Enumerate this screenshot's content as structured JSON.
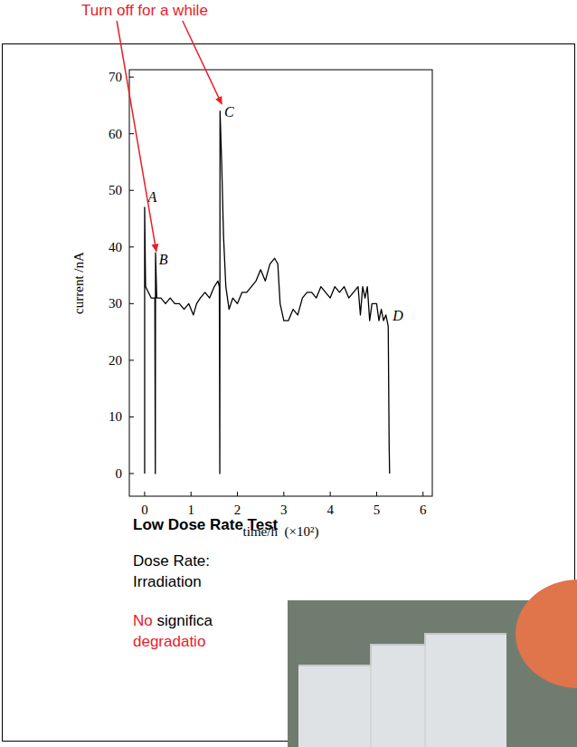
{
  "chart_data": {
    "type": "line",
    "x_label": "time/h  (×10²)",
    "y_label": "current /nA",
    "xlim": [
      -0.33,
      6.2
    ],
    "ylim": [
      -4,
      71.3
    ],
    "xticks": [
      0,
      1,
      2,
      3,
      4,
      5,
      6
    ],
    "yticks": [
      0,
      10,
      20,
      30,
      40,
      50,
      60,
      70
    ],
    "grid": false,
    "color": "#000000",
    "x": [
      0,
      0,
      0.02,
      0.08,
      0.14,
      0.2,
      0.22,
      0.23,
      0.235,
      0.26,
      0.35,
      0.45,
      0.55,
      0.65,
      0.75,
      0.85,
      0.95,
      1.05,
      1.12,
      1.2,
      1.3,
      1.4,
      1.5,
      1.58,
      1.61,
      1.62,
      1.625,
      1.66,
      1.7,
      1.75,
      1.82,
      1.9,
      2.0,
      2.1,
      2.2,
      2.3,
      2.4,
      2.5,
      2.6,
      2.7,
      2.8,
      2.87,
      2.92,
      3.0,
      3.1,
      3.2,
      3.3,
      3.4,
      3.5,
      3.6,
      3.7,
      3.8,
      3.9,
      4.0,
      4.1,
      4.2,
      4.3,
      4.4,
      4.5,
      4.6,
      4.65,
      4.7,
      4.75,
      4.8,
      4.85,
      4.9,
      5.0,
      5.05,
      5.1,
      5.15,
      5.2,
      5.25,
      5.27,
      5.28
    ],
    "values": [
      0,
      47,
      33,
      32,
      31,
      31,
      31,
      0,
      39,
      31,
      31,
      30,
      31,
      30,
      30,
      29,
      30,
      28,
      30,
      31,
      32,
      31,
      33,
      34,
      33,
      0,
      64,
      55,
      42,
      33,
      29,
      31,
      30,
      32,
      32,
      33,
      34,
      36,
      34,
      37,
      38,
      37,
      30,
      27,
      27,
      29,
      28,
      31,
      32,
      32,
      31,
      33,
      32,
      31,
      33,
      32,
      33,
      31,
      32,
      33,
      28,
      33,
      31,
      33,
      27,
      30,
      30,
      27,
      29,
      27,
      28,
      26,
      5,
      0
    ],
    "annotations": [
      {
        "text": "A",
        "x": 0.03,
        "y": 48
      },
      {
        "text": "B",
        "x": 0.27,
        "y": 37
      },
      {
        "text": "C",
        "x": 1.68,
        "y": 63
      },
      {
        "text": "D",
        "x": 5.31,
        "y": 27
      }
    ]
  },
  "slide": {
    "callout": {
      "text": "Turn off for a while",
      "color": "#e8202a",
      "points_to": [
        1,
        2
      ]
    },
    "heading": "Low Dose Rate Test",
    "lines": [
      [
        {
          "text": "Dose Rate:"
        }
      ],
      [
        {
          "text": "Irradiation"
        }
      ],
      [
        {
          "text": "No",
          "color": "#e8202a"
        },
        {
          "text": " significa"
        }
      ],
      [
        {
          "text": "degradatio",
          "color": "#e8202a"
        }
      ]
    ]
  }
}
